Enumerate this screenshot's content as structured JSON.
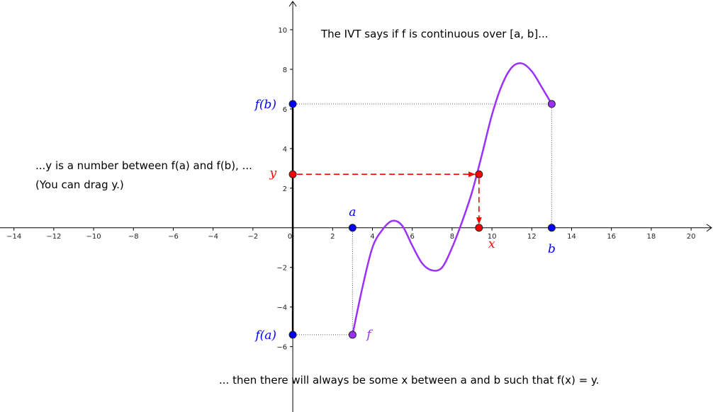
{
  "chart_data": {
    "type": "line",
    "xlim": [
      -14.7,
      21.1
    ],
    "ylim": [
      -9.3,
      11.5
    ],
    "x_ticks": [
      -14,
      -12,
      -10,
      -8,
      -6,
      -4,
      -2,
      0,
      2,
      4,
      6,
      8,
      10,
      12,
      14,
      16,
      18,
      20
    ],
    "y_ticks": [
      -6,
      -4,
      -2,
      2,
      4,
      6,
      8,
      10
    ],
    "x_tick_labels": [
      "−14",
      "−12",
      "−10",
      "−8",
      "−6",
      "−4",
      "−2",
      "0",
      "2",
      "4",
      "6",
      "8",
      "10",
      "12",
      "14",
      "16",
      "18",
      "20"
    ],
    "y_tick_labels": [
      "−6",
      "−4",
      "−2",
      "2",
      "4",
      "6",
      "8",
      "10"
    ],
    "grid": false,
    "series": [
      {
        "name": "f",
        "color": "#9b30ff",
        "points": [
          [
            3,
            -5.4
          ],
          [
            3.5,
            -3.0
          ],
          [
            4,
            -1.0
          ],
          [
            4.5,
            -0.1
          ],
          [
            5.0,
            0.35
          ],
          [
            5.5,
            0.1
          ],
          [
            6.0,
            -0.9
          ],
          [
            6.5,
            -1.8
          ],
          [
            7.0,
            -2.15
          ],
          [
            7.5,
            -2.0
          ],
          [
            8.0,
            -1.0
          ],
          [
            8.5,
            0.3
          ],
          [
            9.0,
            1.8
          ],
          [
            9.5,
            3.7
          ],
          [
            10.0,
            5.7
          ],
          [
            10.5,
            7.2
          ],
          [
            11.0,
            8.1
          ],
          [
            11.5,
            8.3
          ],
          [
            12.0,
            7.9
          ],
          [
            12.5,
            7.1
          ],
          [
            13,
            6.25
          ]
        ]
      }
    ],
    "points": {
      "a": {
        "x": 3,
        "y": 0,
        "label": "a",
        "color": "#0000ff"
      },
      "b": {
        "x": 13,
        "y": 0,
        "label": "b",
        "color": "#0000ff"
      },
      "fa": {
        "x": 0,
        "y": -5.4,
        "label": "f(a)",
        "color": "#0000ff"
      },
      "fb": {
        "x": 0,
        "y": 6.25,
        "label": "f(b)",
        "color": "#0000ff"
      },
      "y": {
        "x": 0,
        "y": 2.7,
        "label": "y",
        "color": "#ff0000"
      },
      "x": {
        "x": 9.35,
        "y": 0,
        "label": "x",
        "color": "#ff0000"
      },
      "fx": {
        "x": 9.35,
        "y": 2.7
      },
      "f_start": {
        "x": 3,
        "y": -5.4
      },
      "f_end": {
        "x": 13,
        "y": 6.25
      }
    },
    "curve_label": "f",
    "annotations": {
      "top": "The IVT says if f is continuous over [a, b]...",
      "left_line1": "...y is a number between f(a) and f(b), ...",
      "left_line2": "(You can drag y.)",
      "bottom": "... then there will always be some x between a and b such that f(x) = y."
    },
    "colors": {
      "curve": "#9b30ff",
      "point_blue": "#0000ff",
      "point_red": "#ff0000",
      "point_purple": "#9b30ff",
      "arrow_red": "#ff0000",
      "axis": "#000000"
    }
  }
}
